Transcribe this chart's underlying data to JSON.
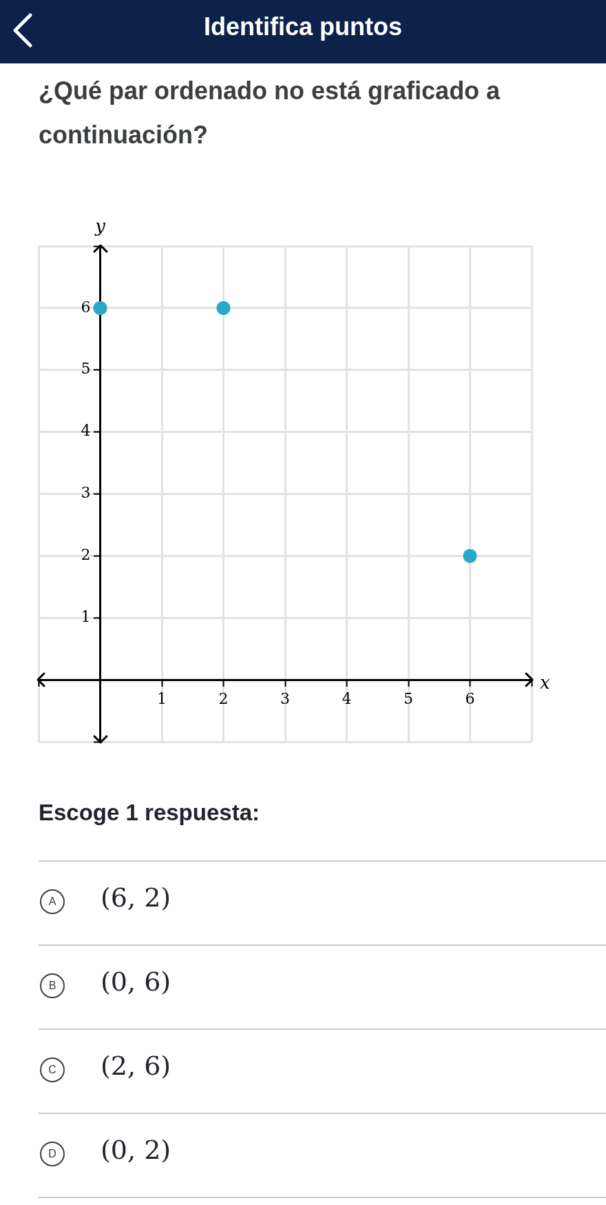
{
  "chart_data": {
    "type": "scatter",
    "title": "Identifica puntos",
    "subtitle": "¿Qué par ordenado no está graficado a continuación?",
    "xlabel": "x",
    "ylabel": "y",
    "x": [
      0,
      2,
      6
    ],
    "series": [
      {
        "color": "#2aa8c9",
        "values": [
          6,
          6,
          2
        ]
      }
    ],
    "xlim": [
      -1,
      7
    ],
    "ylim": [
      -1,
      7
    ],
    "xticks": [
      {
        "value": -1,
        "label": null
      },
      {
        "value": 0,
        "label": null
      },
      1,
      2,
      3,
      4,
      5,
      6,
      {
        "value": 7,
        "label": null
      }
    ],
    "yticks": [
      {
        "value": -1,
        "label": null
      },
      {
        "value": 0,
        "label": null
      },
      1,
      2,
      3,
      4,
      5,
      6,
      {
        "value": 7,
        "label": null
      }
    ],
    "grid": true,
    "legend": false,
    "marker": "circle",
    "annotations": [
      "Escoge 1 respuesta:",
      "A",
      "(6, 2)",
      "B",
      "(0, 6)",
      "C",
      "(2, 6)",
      "D",
      "(0, 2)"
    ]
  }
}
